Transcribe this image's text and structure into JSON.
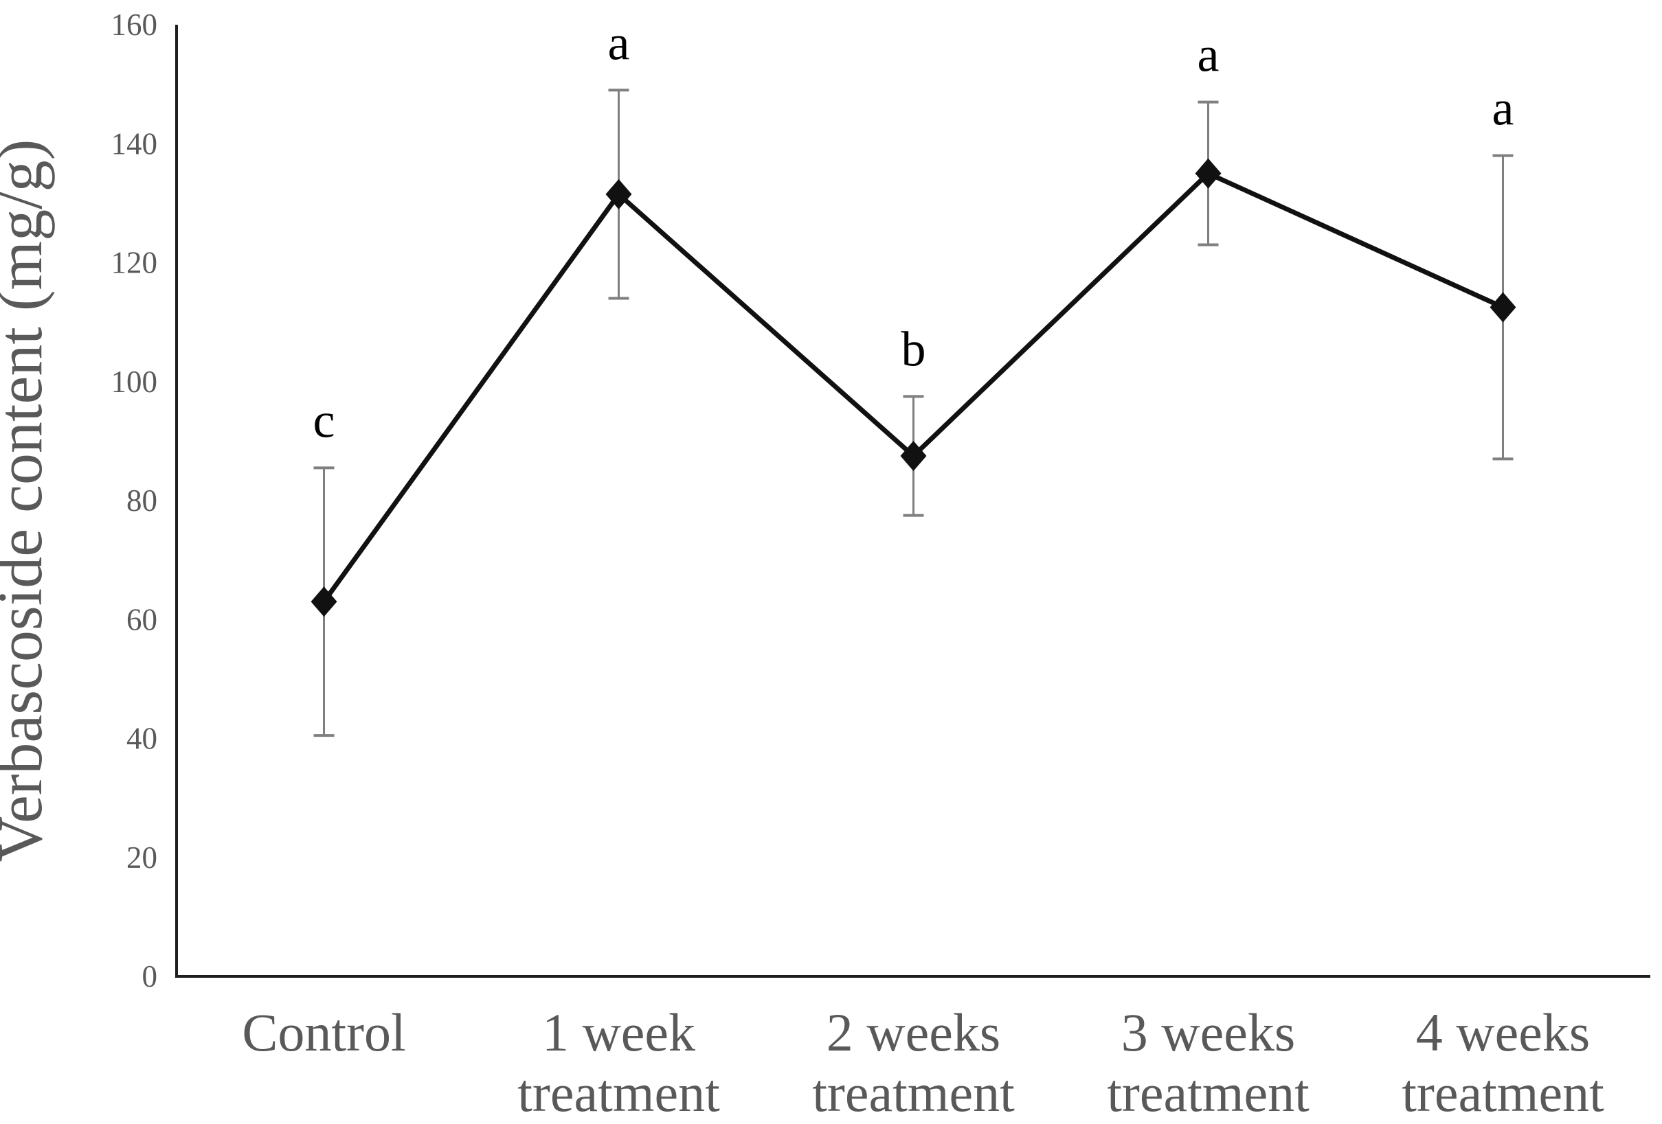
{
  "chart_data": {
    "type": "line",
    "title": "",
    "xlabel": "",
    "ylabel": "Verbascoside content (mg/g)",
    "ylim": [
      0,
      160
    ],
    "yticks": [
      0,
      20,
      40,
      60,
      80,
      100,
      120,
      140,
      160
    ],
    "grid": false,
    "legend": null,
    "categories": [
      "Control",
      "1 week treatment",
      "2 weeks treatment",
      "3 weeks treatment",
      "4 weeks treatment"
    ],
    "category_label_lines": [
      [
        "Control"
      ],
      [
        "1 week",
        "treatment"
      ],
      [
        "2 weeks",
        "treatment"
      ],
      [
        "3 weeks",
        "treatment"
      ],
      [
        "4 weeks",
        "treatment"
      ]
    ],
    "series": [
      {
        "name": "Verbascoside content",
        "marker": "diamond",
        "values": [
          63,
          131.5,
          87.5,
          135,
          112.5
        ],
        "error_bar_top_values": [
          85.5,
          149,
          97.5,
          147,
          138
        ],
        "error_bar_bottom_values": [
          40.5,
          114,
          77.5,
          123,
          87
        ],
        "significance_letters": [
          "c",
          "a",
          "b",
          "a",
          "a"
        ]
      }
    ],
    "colors": {
      "background": "#ffffff",
      "line": "#111111",
      "marker": "#111111",
      "error_bar": "#7f7f7f",
      "axis": "#1f1f1f",
      "tick_label": "#595959",
      "category_label": "#595959",
      "axis_title": "#595959",
      "significance_letter": "#000000"
    }
  }
}
